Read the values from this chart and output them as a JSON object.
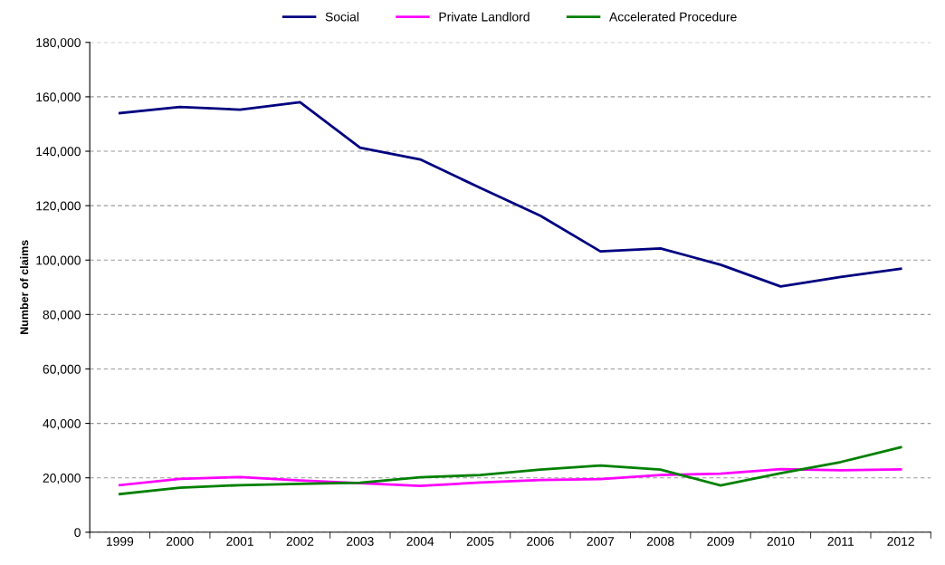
{
  "chart_data": {
    "type": "line",
    "ylabel": "Number of claims",
    "categories": [
      "1999",
      "2000",
      "2001",
      "2002",
      "2003",
      "2004",
      "2005",
      "2006",
      "2007",
      "2008",
      "2009",
      "2010",
      "2011",
      "2012"
    ],
    "series": [
      {
        "name": "Social",
        "color": "#000080",
        "values": [
          154000,
          156300,
          155300,
          158000,
          141300,
          137000,
          126500,
          116300,
          103200,
          104300,
          98300,
          90300,
          93800,
          96800
        ]
      },
      {
        "name": "Private Landlord",
        "color": "#ff00ff",
        "values": [
          17300,
          19600,
          20300,
          19000,
          18000,
          17000,
          18300,
          19200,
          19500,
          21000,
          21500,
          23200,
          22800,
          23100
        ]
      },
      {
        "name": "Accelerated Procedure",
        "color": "#008000",
        "values": [
          14000,
          16400,
          17300,
          17800,
          18200,
          20200,
          21000,
          23000,
          24500,
          23000,
          17200,
          21700,
          25800,
          31200
        ]
      }
    ],
    "ylim": [
      0,
      180000
    ],
    "yticks": [
      {
        "value": 0,
        "label": "0"
      },
      {
        "value": 20000,
        "label": "20,000"
      },
      {
        "value": 40000,
        "label": "40,000"
      },
      {
        "value": 60000,
        "label": "60,000"
      },
      {
        "value": 80000,
        "label": "80,000"
      },
      {
        "value": 100000,
        "label": "100,000"
      },
      {
        "value": 120000,
        "label": "120,000"
      },
      {
        "value": 140000,
        "label": "140,000"
      },
      {
        "value": 160000,
        "label": "160,000"
      },
      {
        "value": 180000,
        "label": "180,000"
      }
    ],
    "grid": "y",
    "legend": "top",
    "marker": "none",
    "line_style": "solid"
  }
}
